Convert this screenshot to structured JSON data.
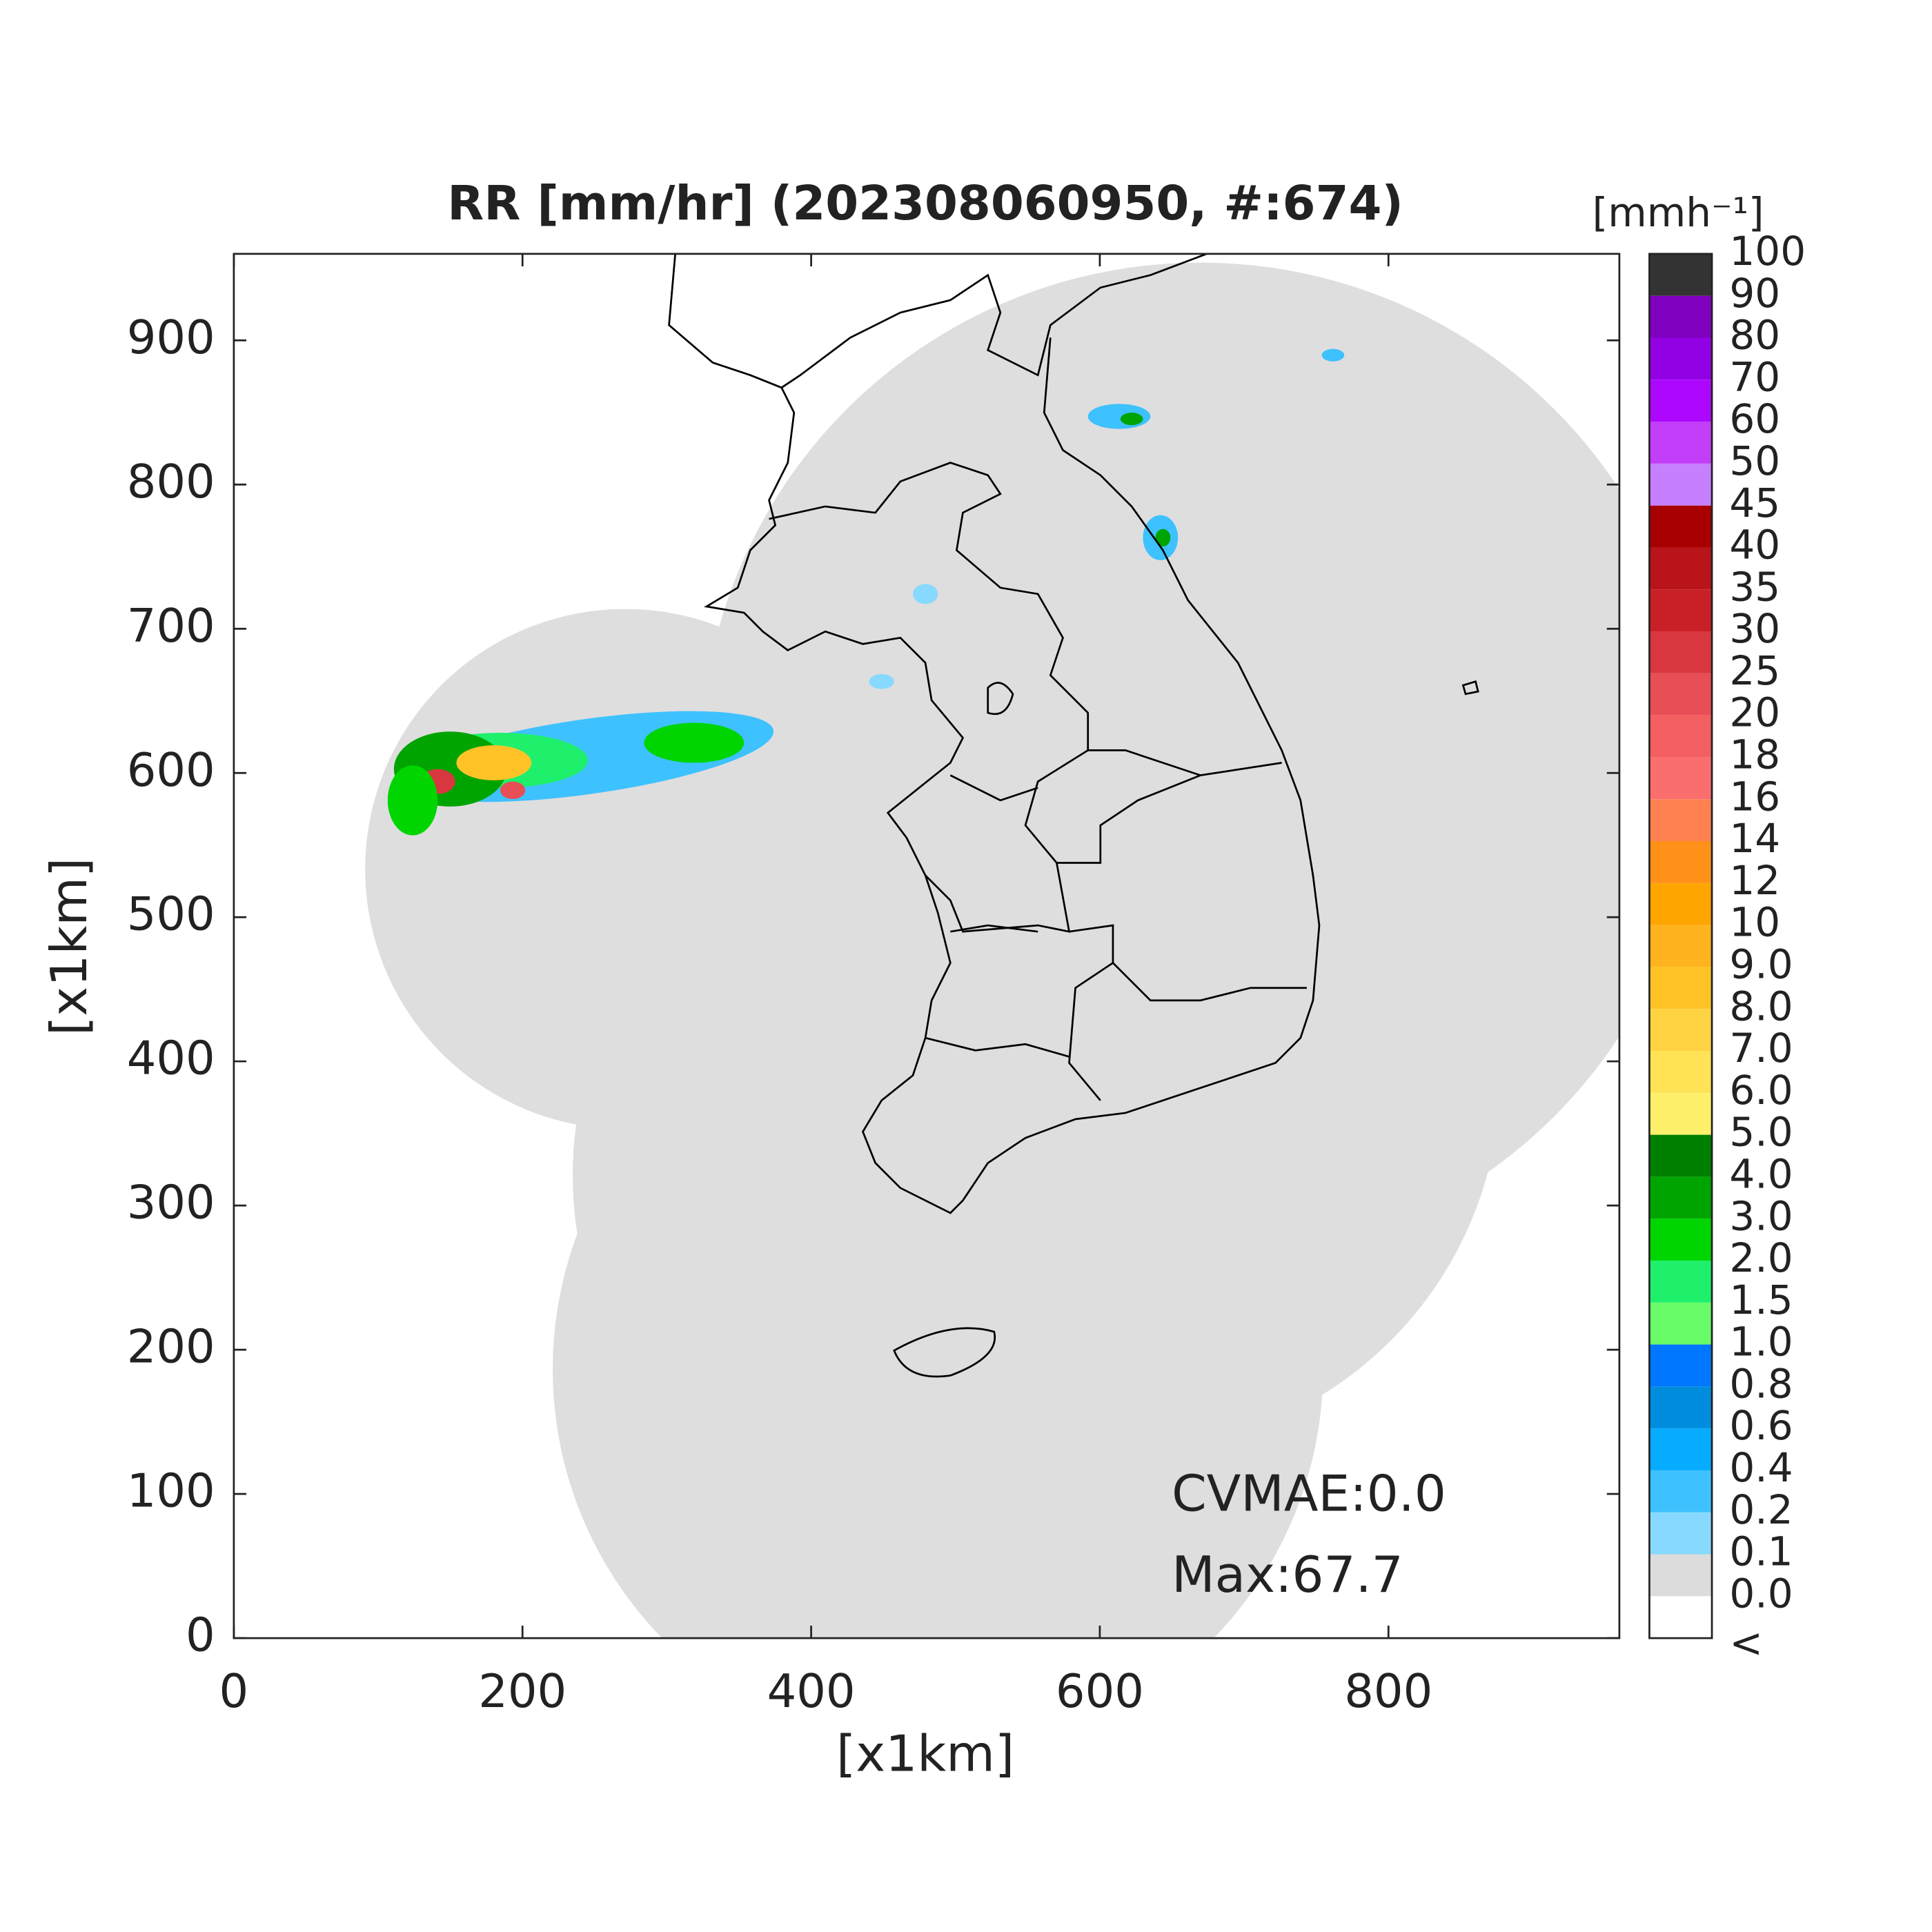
{
  "map": {
    "title": "RR [mm/hr] (202308060950, #:674)",
    "xlabel": "[x1km]",
    "ylabel": "[x1km]",
    "xlim": [
      0,
      960
    ],
    "ylim": [
      0,
      960
    ],
    "xticks": [
      0,
      200,
      400,
      600,
      800
    ],
    "yticks": [
      0,
      100,
      200,
      300,
      400,
      500,
      600,
      700,
      800,
      900
    ],
    "annotations": [
      "CVMAE:0.0",
      "Max:67.7"
    ],
    "colorbar": {
      "unit": "[mmh⁻¹]",
      "labels": [
        "<",
        "0.0",
        "0.1",
        "0.2",
        "0.4",
        "0.6",
        "0.8",
        "1.0",
        "1.5",
        "2.0",
        "3.0",
        "4.0",
        "5.0",
        "6.0",
        "7.0",
        "8.0",
        "9.0",
        "10",
        "12",
        "14",
        "16",
        "18",
        "20",
        "25",
        "30",
        "35",
        "40",
        "45",
        "50",
        "60",
        "70",
        "80",
        "90",
        "100"
      ],
      "colors": [
        "#ffffff",
        "#dcdcdc",
        "#87d9ff",
        "#3ec1ff",
        "#07abff",
        "#008dde",
        "#0077ff",
        "#69fc69",
        "#1ef06b",
        "#00d500",
        "#00a400",
        "#008000",
        "#fff06b",
        "#ffe255",
        "#ffd342",
        "#ffc328",
        "#ffb31e",
        "#ffa500",
        "#ff9018",
        "#ff8050",
        "#fa6e6e",
        "#f45f62",
        "#e84e55",
        "#d9373f",
        "#c91f27",
        "#b8141a",
        "#a80000",
        "#c57fff",
        "#c23ef8",
        "#ad07ff",
        "#9200e4",
        "#7f00bf",
        "#333333"
      ]
    }
  }
}
